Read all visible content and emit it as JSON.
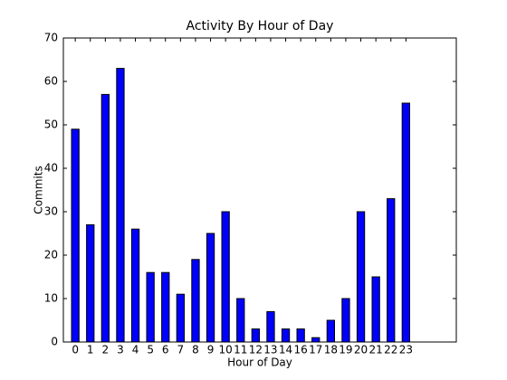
{
  "chart_data": {
    "type": "bar",
    "title": "Activity By Hour of Day",
    "x_label": "Hour of Day",
    "y_label": "Commits",
    "categories": [
      "0",
      "1",
      "2",
      "3",
      "4",
      "5",
      "6",
      "7",
      "8",
      "9",
      "10",
      "11",
      "12",
      "13",
      "14",
      "16",
      "17",
      "18",
      "19",
      "20",
      "21",
      "22",
      "23"
    ],
    "values": [
      49,
      27,
      57,
      63,
      26,
      16,
      16,
      11,
      19,
      25,
      30,
      10,
      3,
      7,
      3,
      3,
      1,
      5,
      10,
      30,
      15,
      33,
      55
    ],
    "color": "#0000ff",
    "ylim": [
      0,
      70
    ],
    "yticks": [
      0,
      10,
      20,
      30,
      40,
      50,
      60,
      70
    ],
    "grid": false
  }
}
